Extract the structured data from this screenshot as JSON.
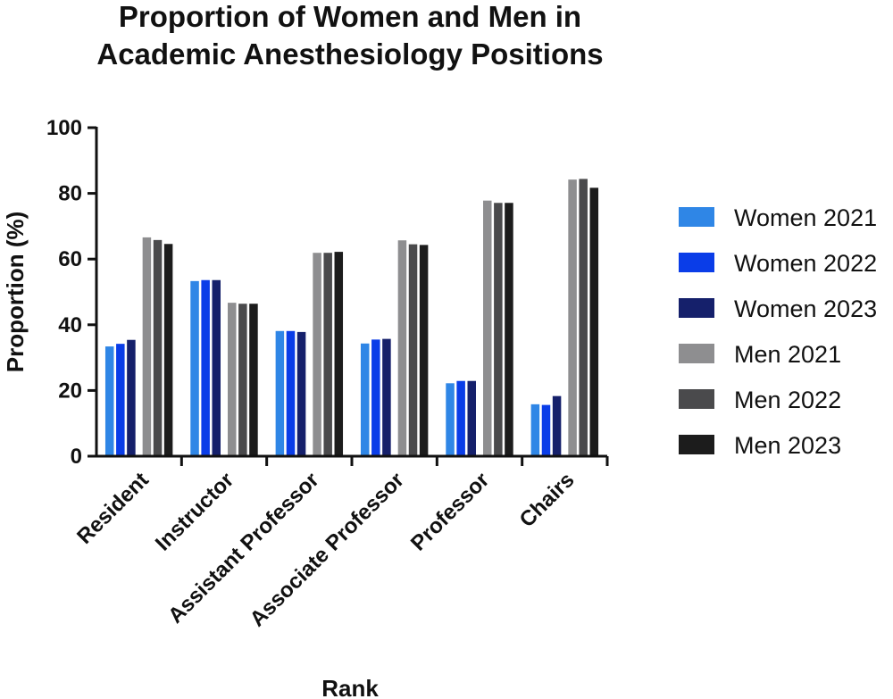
{
  "chart_data": {
    "type": "bar",
    "title": [
      "Proportion of Women and Men in",
      "Academic Anesthesiology Positions"
    ],
    "xlabel": "Rank",
    "ylabel": "Proportion (%)",
    "ylim": [
      0,
      100
    ],
    "yticks": [
      0,
      20,
      40,
      60,
      80,
      100
    ],
    "grid": false,
    "legend_position": "right",
    "categories": [
      "Resident",
      "Instructor",
      "Assistant Professor",
      "Associate Professor",
      "Professor",
      "Chairs"
    ],
    "series": [
      {
        "name": "Women 2021",
        "color": "#2f86e6",
        "values": [
          33.4,
          53.3,
          38.1,
          34.3,
          22.2,
          15.8
        ]
      },
      {
        "name": "Women 2022",
        "color": "#0a3de8",
        "values": [
          34.2,
          53.6,
          38.1,
          35.5,
          22.9,
          15.6
        ]
      },
      {
        "name": "Women 2023",
        "color": "#15206b",
        "values": [
          35.4,
          53.6,
          37.8,
          35.7,
          22.9,
          18.3
        ]
      },
      {
        "name": "Men 2021",
        "color": "#8e8e90",
        "values": [
          66.6,
          46.7,
          61.9,
          65.7,
          77.8,
          84.2
        ]
      },
      {
        "name": "Men 2022",
        "color": "#4a4a4c",
        "values": [
          65.8,
          46.4,
          61.9,
          64.5,
          77.1,
          84.4
        ]
      },
      {
        "name": "Men 2023",
        "color": "#1c1c1c",
        "values": [
          64.6,
          46.4,
          62.2,
          64.3,
          77.1,
          81.7
        ]
      }
    ]
  }
}
